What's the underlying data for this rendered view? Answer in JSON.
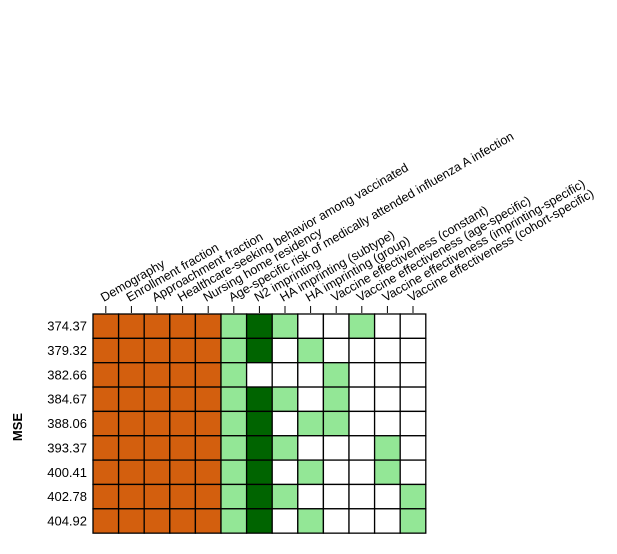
{
  "chart_data": {
    "type": "heatmap",
    "xlabel": "",
    "ylabel": "MSE",
    "columns": [
      "Demography",
      "Enrollment fraction",
      "Approachment fraction",
      "Healthcare-seeking behavior among vaccinated",
      "Nursing home residency",
      "Age-specific risk of medically attended influenza A infection",
      "N2 imprinting",
      "HA imprinting (subtype)",
      "HA imprinting (group)",
      "Vaccine effectiveness (constant)",
      "Vaccine effectiveness (age-specific)",
      "Vaccine effectiveness (imprinting-specific)",
      "Vaccine effectiveness (cohort-specific)"
    ],
    "rows": [
      "374.37",
      "379.32",
      "382.66",
      "384.67",
      "388.06",
      "393.37",
      "400.41",
      "402.78",
      "404.92"
    ],
    "legend": {
      "fixed": "#d35f0e",
      "light": "#93e796",
      "dark": "#006400",
      "absent": "#ffffff"
    },
    "matrix": [
      [
        "fixed",
        "fixed",
        "fixed",
        "fixed",
        "fixed",
        "light",
        "dark",
        "light",
        "absent",
        "absent",
        "light",
        "absent",
        "absent"
      ],
      [
        "fixed",
        "fixed",
        "fixed",
        "fixed",
        "fixed",
        "light",
        "dark",
        "absent",
        "light",
        "absent",
        "absent",
        "absent",
        "absent"
      ],
      [
        "fixed",
        "fixed",
        "fixed",
        "fixed",
        "fixed",
        "light",
        "absent",
        "absent",
        "absent",
        "light",
        "absent",
        "absent",
        "absent"
      ],
      [
        "fixed",
        "fixed",
        "fixed",
        "fixed",
        "fixed",
        "light",
        "dark",
        "light",
        "absent",
        "light",
        "absent",
        "absent",
        "absent"
      ],
      [
        "fixed",
        "fixed",
        "fixed",
        "fixed",
        "fixed",
        "light",
        "dark",
        "absent",
        "light",
        "light",
        "absent",
        "absent",
        "absent"
      ],
      [
        "fixed",
        "fixed",
        "fixed",
        "fixed",
        "fixed",
        "light",
        "dark",
        "light",
        "absent",
        "absent",
        "absent",
        "light",
        "absent"
      ],
      [
        "fixed",
        "fixed",
        "fixed",
        "fixed",
        "fixed",
        "light",
        "dark",
        "absent",
        "light",
        "absent",
        "absent",
        "light",
        "absent"
      ],
      [
        "fixed",
        "fixed",
        "fixed",
        "fixed",
        "fixed",
        "light",
        "dark",
        "light",
        "absent",
        "absent",
        "absent",
        "absent",
        "light"
      ],
      [
        "fixed",
        "fixed",
        "fixed",
        "fixed",
        "fixed",
        "light",
        "dark",
        "absent",
        "light",
        "absent",
        "absent",
        "absent",
        "light"
      ]
    ]
  }
}
